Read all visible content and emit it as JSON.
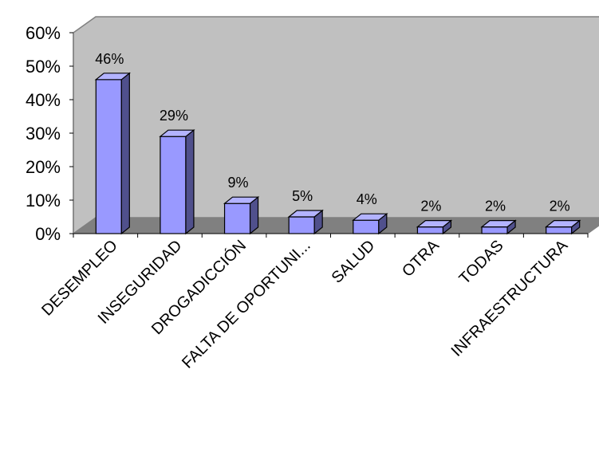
{
  "chart_data": {
    "type": "bar",
    "title": "",
    "xlabel": "",
    "ylabel": "",
    "categories": [
      "DESEMPLEO",
      "INSEGURIDAD",
      "DROGADICCIÓN",
      "FALTA DE OPORTUNI...",
      "SALUD",
      "OTRA",
      "TODAS",
      "INFRAESTRUCTURA"
    ],
    "values": [
      0.46,
      0.29,
      0.09,
      0.05,
      0.04,
      0.02,
      0.02,
      0.02
    ],
    "data_labels": [
      "46%",
      "29%",
      "9%",
      "5%",
      "4%",
      "2%",
      "2%",
      "2%"
    ],
    "yticks": [
      "0%",
      "10%",
      "20%",
      "30%",
      "40%",
      "50%",
      "60%"
    ],
    "ylim": [
      0,
      0.6
    ],
    "grid": false,
    "style": "3d-column",
    "colors": {
      "bar_front": "#9999FF",
      "bar_top": "#B3B3FF",
      "bar_side": "#50508C",
      "wall": "#C0C0C0",
      "floor": "#808080",
      "outline": "#000000"
    }
  }
}
